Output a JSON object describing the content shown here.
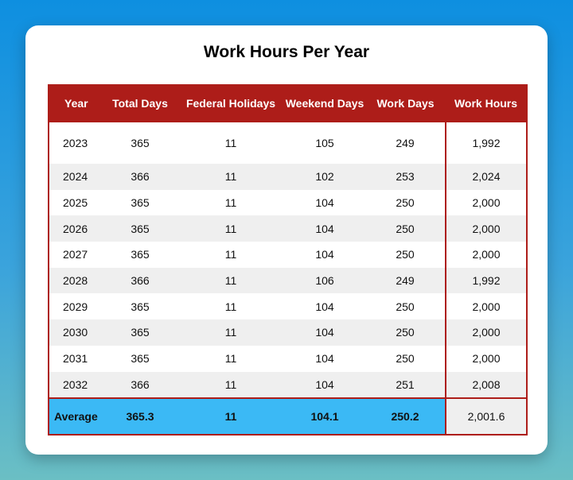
{
  "title": "Work Hours Per Year",
  "table": {
    "headers": [
      "Year",
      "Total Days",
      "Federal Holidays",
      "Weekend Days",
      "Work Days",
      "Work Hours"
    ],
    "rows": [
      [
        "2023",
        "365",
        "11",
        "105",
        "249",
        "1,992"
      ],
      [
        "2024",
        "366",
        "11",
        "102",
        "253",
        "2,024"
      ],
      [
        "2025",
        "365",
        "11",
        "104",
        "250",
        "2,000"
      ],
      [
        "2026",
        "365",
        "11",
        "104",
        "250",
        "2,000"
      ],
      [
        "2027",
        "365",
        "11",
        "104",
        "250",
        "2,000"
      ],
      [
        "2028",
        "366",
        "11",
        "106",
        "249",
        "1,992"
      ],
      [
        "2029",
        "365",
        "11",
        "104",
        "250",
        "2,000"
      ],
      [
        "2030",
        "365",
        "11",
        "104",
        "250",
        "2,000"
      ],
      [
        "2031",
        "365",
        "11",
        "104",
        "250",
        "2,000"
      ],
      [
        "2032",
        "366",
        "11",
        "104",
        "251",
        "2,008"
      ]
    ],
    "average": [
      "Average",
      "365.3",
      "11",
      "104.1",
      "250.2",
      "2,001.6"
    ]
  },
  "colors": {
    "header_bg": "#ad1d19",
    "average_bg": "#3bb9f5",
    "stripe_bg": "#efefef",
    "background_top": "#0e8fe0",
    "background_bottom": "#6bbfc4"
  }
}
